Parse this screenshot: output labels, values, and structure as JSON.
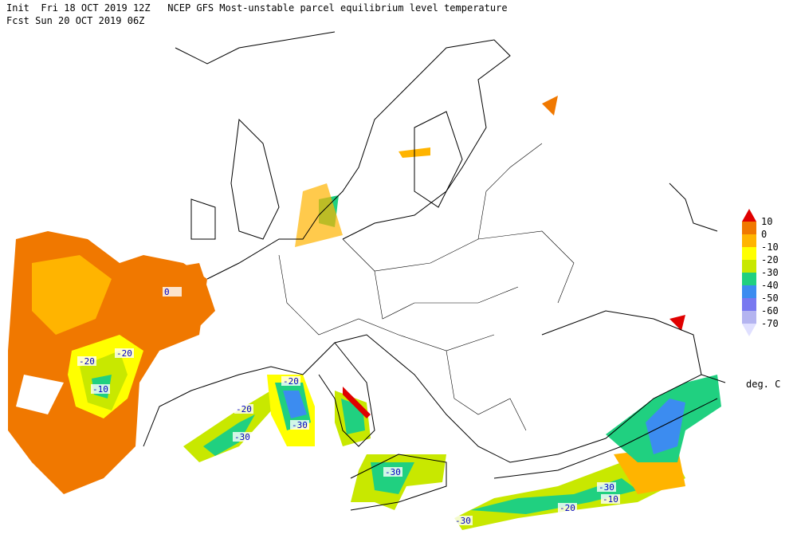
{
  "header": {
    "line1": "Init  Fri 18 OCT 2019 12Z   NCEP GFS Most-unstable parcel equilibrium level temperature",
    "line2": "Fcst Sun 20 OCT 2019 06Z"
  },
  "legend": {
    "labels": [
      "10",
      "0",
      "-10",
      "-20",
      "-30",
      "-40",
      "-50",
      "-60",
      "-70"
    ],
    "colors": [
      "#e00000",
      "#f07800",
      "#ffb400",
      "#ffff00",
      "#c8e800",
      "#20d080",
      "#3c8cf0",
      "#7878f0",
      "#b4b4f0",
      "#e0e0ff"
    ],
    "unit": "deg. C"
  },
  "contour_labels": [
    "0",
    "-20",
    "-20",
    "-10",
    "-20",
    "-20",
    "-30",
    "-30",
    "-30",
    "-30",
    "-10",
    "-20",
    "-30"
  ]
}
